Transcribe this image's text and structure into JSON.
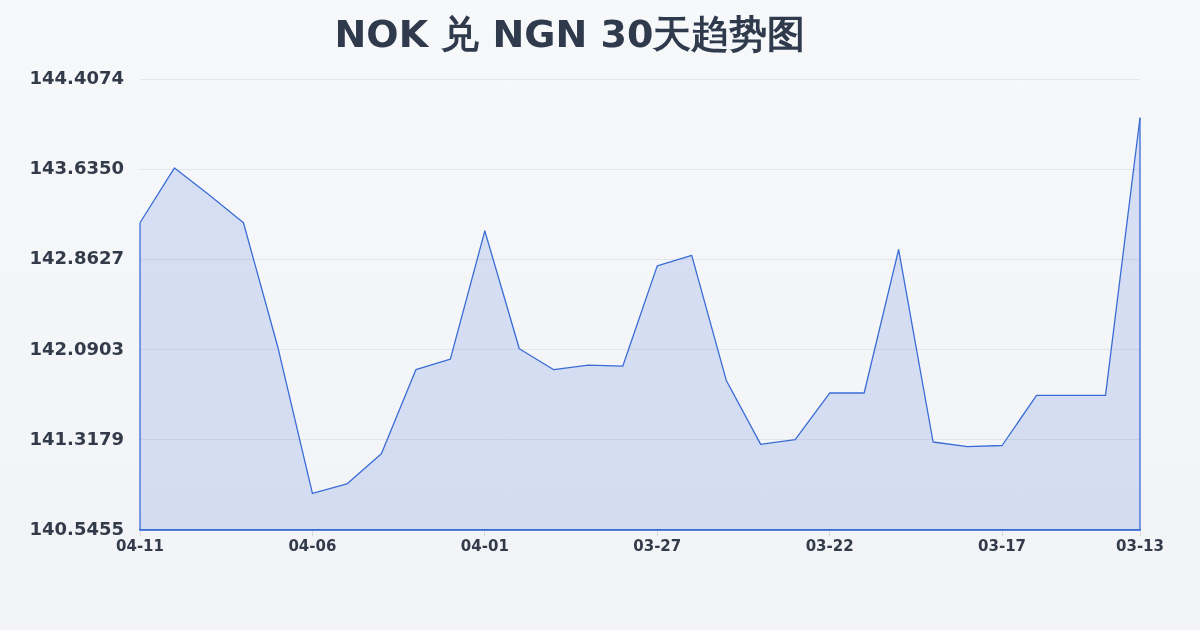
{
  "chart_data": {
    "type": "area",
    "title": "NOK 兑 NGN 30天趋势图",
    "categories": [
      "04-11",
      null,
      null,
      null,
      null,
      "04-06",
      null,
      null,
      null,
      null,
      "04-01",
      null,
      null,
      null,
      null,
      "03-27",
      null,
      null,
      null,
      null,
      "03-22",
      null,
      null,
      null,
      null,
      "03-17",
      null,
      null,
      null,
      "03-13"
    ],
    "series": [
      {
        "color": "#3a6cd6",
        "values": [
          143.18,
          143.65,
          143.42,
          143.18,
          142.11,
          140.86,
          140.94,
          141.2,
          141.92,
          142.01,
          143.11,
          142.1,
          141.92,
          141.96,
          141.95,
          142.81,
          142.9,
          141.83,
          141.28,
          141.32,
          141.72,
          141.72,
          142.95,
          141.3,
          141.26,
          141.27,
          141.7,
          141.7,
          141.7,
          144.08
        ]
      }
    ],
    "ylim": [
      140.5455,
      144.4074
    ],
    "yticks": [
      140.5455,
      141.3179,
      142.0903,
      142.8627,
      {
        "value": 143.635,
        "label": "143.6350"
      },
      144.4074
    ],
    "grid": "y"
  }
}
